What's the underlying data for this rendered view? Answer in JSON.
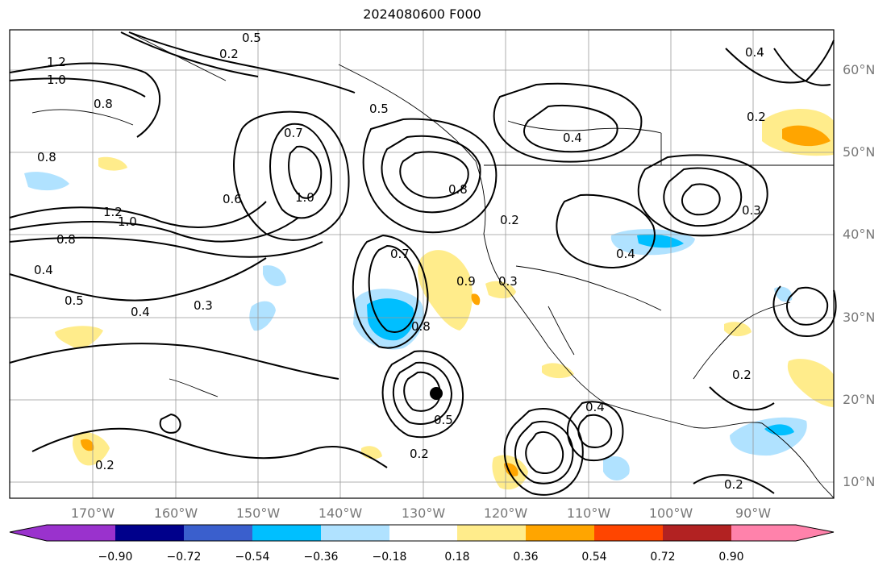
{
  "title": "2024080600 F000",
  "lat_labels": [
    "60°N",
    "50°N",
    "40°N",
    "30°N",
    "20°N",
    "10°N"
  ],
  "lon_labels": [
    "170°W",
    "160°W",
    "150°W",
    "140°W",
    "130°W",
    "120°W",
    "110°W",
    "100°W",
    "90°W"
  ],
  "colorbar": {
    "labels": [
      "−0.90",
      "−0.72",
      "−0.54",
      "−0.36",
      "−0.18",
      "0.18",
      "0.36",
      "0.54",
      "0.72",
      "0.90"
    ],
    "colors": [
      "#9a32cd",
      "#00008b",
      "#3a5fcd",
      "#00bfff",
      "#b0e2ff",
      "#ffffff",
      "#ffec8b",
      "#ffa500",
      "#ff4500",
      "#b22222",
      "#ff82ab"
    ]
  },
  "contour_labels": [
    "1.2",
    "1.0",
    "0.8",
    "0.2",
    "0.5",
    "0.7",
    "0.6",
    "1.0",
    "0.8",
    "0.4",
    "1.2",
    "1.0",
    "0.8",
    "0.4",
    "0.5",
    "0.4",
    "0.3",
    "0.7",
    "0.9",
    "0.8",
    "0.2",
    "0.3",
    "0.4",
    "0.4",
    "0.5",
    "0.8",
    "0.2",
    "0.5",
    "0.2",
    "0.4",
    "0.3",
    "0.2",
    "0.2",
    "0.2"
  ]
}
